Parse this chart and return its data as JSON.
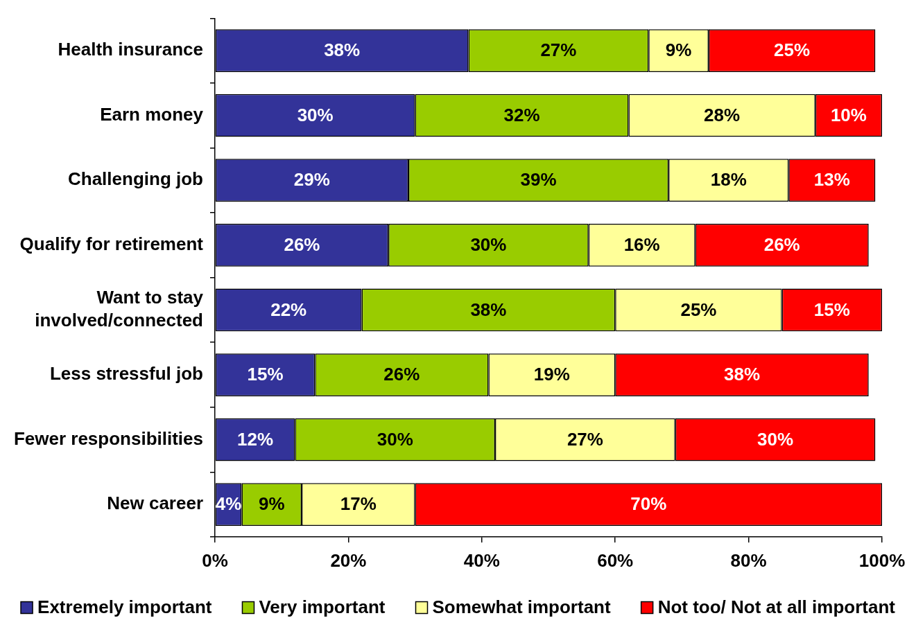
{
  "chart_data": {
    "type": "bar",
    "orientation": "horizontal",
    "stacked": true,
    "categories": [
      "Health insurance",
      "Earn money",
      "Challenging job",
      "Qualify for retirement",
      "Want to stay involved/connected",
      "Less stressful job",
      "Fewer responsibilities",
      "New career"
    ],
    "series": [
      {
        "name": "Extremely important",
        "color": "#333399",
        "values": [
          38,
          30,
          29,
          26,
          22,
          15,
          12,
          4
        ],
        "value_labels": [
          "38%",
          "30%",
          "29%",
          "26%",
          "22%",
          "15%",
          "12%",
          "4%"
        ]
      },
      {
        "name": "Very important",
        "color": "#99cc00",
        "values": [
          27,
          32,
          39,
          30,
          38,
          26,
          30,
          9
        ],
        "value_labels": [
          "27%",
          "32%",
          "39%",
          "30%",
          "38%",
          "26%",
          "30%",
          "9%"
        ]
      },
      {
        "name": "Somewhat important",
        "color": "#ffff99",
        "values": [
          9,
          28,
          18,
          16,
          25,
          19,
          27,
          17
        ],
        "value_labels": [
          "9%",
          "28%",
          "18%",
          "16%",
          "25%",
          "19%",
          "27%",
          "17%"
        ]
      },
      {
        "name": "Not too/ Not at all important",
        "color": "#ff0000",
        "values": [
          25,
          10,
          13,
          26,
          15,
          38,
          30,
          70
        ],
        "value_labels": [
          "25%",
          "10%",
          "13%",
          "26%",
          "15%",
          "38%",
          "30%",
          "70%"
        ]
      }
    ],
    "xlim": [
      0,
      100
    ],
    "xticks": [
      {
        "value": 0,
        "label": "0%"
      },
      {
        "value": 20,
        "label": "20%"
      },
      {
        "value": 40,
        "label": "40%"
      },
      {
        "value": 60,
        "label": "60%"
      },
      {
        "value": 80,
        "label": "80%"
      },
      {
        "value": 100,
        "label": "100%"
      }
    ],
    "grid": false,
    "legend": "bottom"
  }
}
